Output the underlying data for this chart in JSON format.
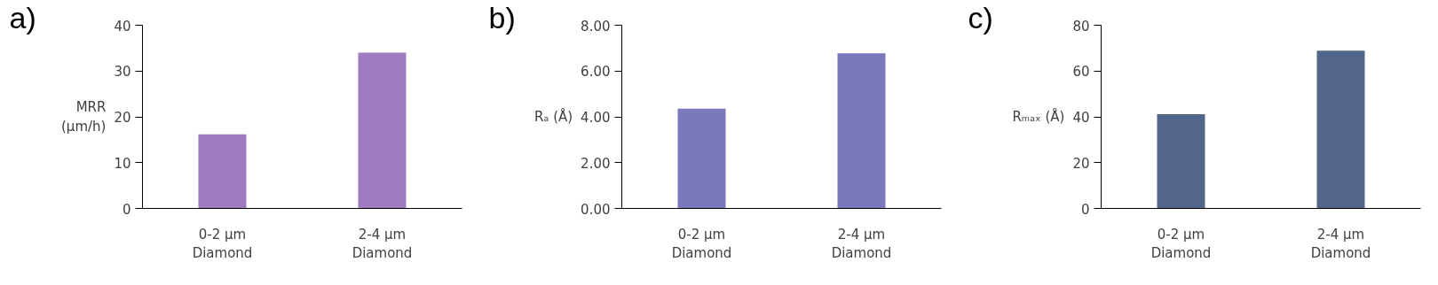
{
  "chart_data": [
    {
      "type": "bar",
      "title": "a)",
      "ylabel": "MRR\n(µm/h)",
      "categories": [
        "0-2 µm\nDiamond",
        "2-4 µm\nDiamond"
      ],
      "values": [
        16.2,
        34.0
      ],
      "color": "#a07bbf",
      "ylim": [
        0,
        40
      ],
      "yticks": [
        0,
        10,
        20,
        30,
        40
      ],
      "grid": false
    },
    {
      "type": "bar",
      "title": "b)",
      "ylabel": "Rₐ (Å)",
      "categories": [
        "0-2 µm\nDiamond",
        "2-4 µm\nDiamond"
      ],
      "values": [
        4.36,
        6.77
      ],
      "color": "#7b78bd",
      "ylim": [
        0,
        8
      ],
      "yticks": [
        {
          "value": 0,
          "label": "0.00"
        },
        {
          "value": 2,
          "label": "2.00"
        },
        {
          "value": 4,
          "label": "4.00"
        },
        {
          "value": 6,
          "label": "6.00"
        },
        {
          "value": 8,
          "label": "8.00"
        }
      ],
      "grid": false
    },
    {
      "type": "bar",
      "title": "c)",
      "ylabel": "Rₘₐₓ (Å)",
      "categories": [
        "0-2 µm\nDiamond",
        "2-4 µm\nDiamond"
      ],
      "values": [
        41.2,
        68.9
      ],
      "color": "#52668b",
      "ylim": [
        0,
        80
      ],
      "yticks": [
        0,
        20,
        40,
        60,
        80
      ],
      "grid": false
    }
  ]
}
